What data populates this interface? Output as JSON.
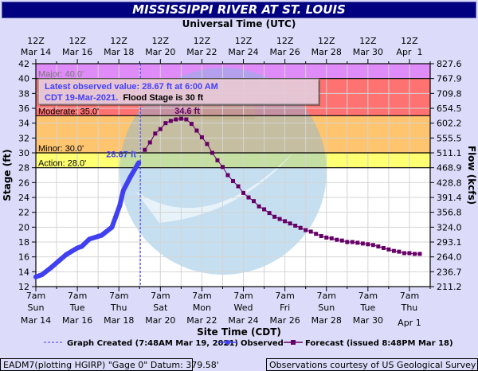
{
  "chart_data": {
    "type": "line",
    "title": "MISSISSIPPI RIVER AT ST. LOUIS",
    "top_axis_label": "Universal Time (UTC)",
    "xlabel": "Site Time (CDT)",
    "ylabel": "Stage (ft)",
    "y2label": "Flow (kcfs)",
    "ylim": [
      12,
      42
    ],
    "xlim": [
      "2021-03-14T07:00",
      "2021-04-02T07:00"
    ],
    "grid": true,
    "y_ticks": [
      12,
      14,
      16,
      18,
      20,
      22,
      24,
      26,
      28,
      30,
      32,
      34,
      36,
      38,
      40,
      42
    ],
    "y2_ticks": [
      "211.2",
      "236.7",
      "264.0",
      "293.1",
      "324.0",
      "356.8",
      "391.4",
      "428.8",
      "468.9",
      "511.1",
      "555.5",
      "602.2",
      "654.5",
      "709.8",
      "767.9",
      "827.6"
    ],
    "bottom_ticks": [
      {
        "t": "2021-03-14T07:00",
        "l1": "7am",
        "l2": "Sun",
        "l3": "Mar 14"
      },
      {
        "t": "2021-03-16T07:00",
        "l1": "7am",
        "l2": "Tue",
        "l3": "Mar 16"
      },
      {
        "t": "2021-03-18T07:00",
        "l1": "7am",
        "l2": "Thu",
        "l3": "Mar 18"
      },
      {
        "t": "2021-03-20T07:00",
        "l1": "7am",
        "l2": "Sat",
        "l3": "Mar 20"
      },
      {
        "t": "2021-03-22T07:00",
        "l1": "7am",
        "l2": "Mon",
        "l3": "Mar 22"
      },
      {
        "t": "2021-03-24T07:00",
        "l1": "7am",
        "l2": "Wed",
        "l3": "Mar 24"
      },
      {
        "t": "2021-03-26T07:00",
        "l1": "7am",
        "l2": "Fri",
        "l3": "Mar 26"
      },
      {
        "t": "2021-03-28T07:00",
        "l1": "7am",
        "l2": "Sun",
        "l3": "Mar 28"
      },
      {
        "t": "2021-03-30T07:00",
        "l1": "7am",
        "l2": "Tue",
        "l3": "Mar 30"
      },
      {
        "t": "2021-04-01T07:00",
        "l1": "7am",
        "l2": "Thu",
        "l3": "Apr 1"
      }
    ],
    "top_ticks": [
      {
        "t": "2021-03-14T07:00",
        "l1": "12Z",
        "l2": "Mar 14"
      },
      {
        "t": "2021-03-16T07:00",
        "l1": "12Z",
        "l2": "Mar 16"
      },
      {
        "t": "2021-03-18T07:00",
        "l1": "12Z",
        "l2": "Mar 18"
      },
      {
        "t": "2021-03-20T07:00",
        "l1": "12Z",
        "l2": "Mar 20"
      },
      {
        "t": "2021-03-22T07:00",
        "l1": "12Z",
        "l2": "Mar 22"
      },
      {
        "t": "2021-03-24T07:00",
        "l1": "12Z",
        "l2": "Mar 24"
      },
      {
        "t": "2021-03-26T07:00",
        "l1": "12Z",
        "l2": "Mar 26"
      },
      {
        "t": "2021-03-28T07:00",
        "l1": "12Z",
        "l2": "Mar 28"
      },
      {
        "t": "2021-03-30T07:00",
        "l1": "12Z",
        "l2": "Mar 30"
      },
      {
        "t": "2021-04-01T07:00",
        "l1": "12Z",
        "l2": "Apr  1"
      }
    ],
    "flood_categories": [
      {
        "name": "Major",
        "label": "Major: 40.0'",
        "from": 40,
        "to": 42,
        "color": "#e08cf8"
      },
      {
        "name": "Moderate",
        "label": "Moderate: 35.0'",
        "from": 35,
        "to": 40,
        "color": "#ff7272"
      },
      {
        "name": "Minor",
        "label": "Minor: 30.0'",
        "from": 30,
        "to": 35,
        "color": "#ffc46e"
      },
      {
        "name": "Action",
        "label": "Action: 28.0'",
        "from": 28,
        "to": 30,
        "color": "#ffff72"
      }
    ],
    "graph_created": "2021-03-19T07:48",
    "series": [
      {
        "name": "Observed",
        "color": "#4040f0",
        "points": [
          [
            "2021-03-14T07:00",
            13.3
          ],
          [
            "2021-03-14T14:00",
            13.6
          ],
          [
            "2021-03-15T00:00",
            14.5
          ],
          [
            "2021-03-15T09:00",
            15.4
          ],
          [
            "2021-03-15T18:00",
            16.3
          ],
          [
            "2021-03-16T07:00",
            17.2
          ],
          [
            "2021-03-16T12:00",
            17.4
          ],
          [
            "2021-03-16T21:00",
            18.4
          ],
          [
            "2021-03-17T11:00",
            18.9
          ],
          [
            "2021-03-17T23:00",
            20.0
          ],
          [
            "2021-03-18T03:00",
            21.3
          ],
          [
            "2021-03-18T08:00",
            22.9
          ],
          [
            "2021-03-18T12:00",
            24.9
          ],
          [
            "2021-03-18T20:00",
            26.7
          ],
          [
            "2021-03-19T05:00",
            28.5
          ],
          [
            "2021-03-19T06:00",
            28.67
          ]
        ]
      },
      {
        "name": "Forecast",
        "color": "#660066",
        "start": "2021-03-19T13:00",
        "interval_hours": 6,
        "values": [
          30.4,
          31.4,
          32.6,
          33.2,
          34.0,
          34.3,
          34.5,
          34.6,
          34.5,
          33.9,
          33.0,
          32.1,
          31.2,
          30.0,
          29.0,
          28.1,
          27.0,
          26.2,
          25.5,
          24.6,
          24.0,
          23.5,
          22.8,
          22.4,
          21.9,
          21.4,
          21.1,
          20.8,
          20.5,
          20.2,
          19.9,
          19.6,
          19.4,
          19.1,
          18.8,
          18.6,
          18.5,
          18.3,
          18.2,
          18.0,
          18.0,
          17.9,
          17.8,
          17.7,
          17.6,
          17.4,
          17.2,
          17.0,
          16.8,
          16.7,
          16.5,
          16.5,
          16.4,
          16.4
        ]
      }
    ],
    "annotations": {
      "latest_label": "28.67 ft",
      "peak_label": "34.6 ft",
      "box_line1": "Latest observed value: 28.67 ft at 6:00 AM",
      "box_line2_blue": "CDT 19-Mar-2021.",
      "box_line2_black": "Flood Stage is 30 ft"
    },
    "legend": {
      "created": "Graph Created (7:48AM Mar 19, 2021)",
      "observed": "Observed",
      "forecast": "Forecast (issued 8:48PM Mar 18)"
    }
  },
  "footer": {
    "left": "EADM7(plotting HGIRP) \"Gage 0\" Datum: 379.58'",
    "right": "Observations courtesy of US Geological Survey"
  },
  "watermark": "NOAA / NATIONAL OCEANIC AND ATMOSPHERIC ADMINISTRATION / U.S. DEPARTMENT OF COMMERCE"
}
